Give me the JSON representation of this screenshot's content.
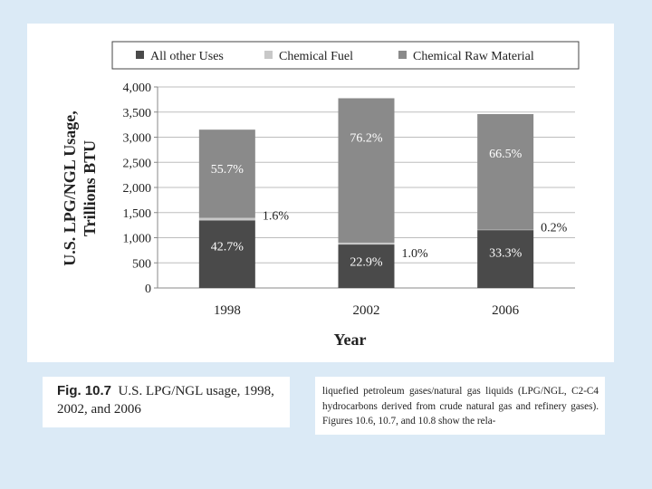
{
  "chart_data": {
    "type": "bar",
    "stacked": true,
    "categories": [
      "1998",
      "2002",
      "2006"
    ],
    "totals": [
      3150,
      3775,
      3460
    ],
    "series": [
      {
        "name": "All other Uses",
        "values": [
          1345,
          864,
          1152
        ],
        "labels": [
          "42.7%",
          "22.9%",
          "33.3%"
        ],
        "color": "#4a4a4a"
      },
      {
        "name": "Chemical Fuel",
        "values": [
          50,
          38,
          7
        ],
        "labels": [
          "1.6%",
          "1.0%",
          "0.2%"
        ],
        "color": "#c8c8c8"
      },
      {
        "name": "Chemical Raw Material",
        "values": [
          1755,
          2873,
          2301
        ],
        "labels": [
          "55.7%",
          "76.2%",
          "66.5%"
        ],
        "color": "#8a8a8a"
      }
    ],
    "ylabel": "U.S. LPG/NGL Usage, Trillions BTU",
    "ylabel_lines": [
      "U.S. LPG/NGL Usage,",
      "Trillions BTU"
    ],
    "xlabel": "Year",
    "ylim": [
      0,
      4000
    ],
    "yticks": [
      "0",
      "500",
      "1,000",
      "1,500",
      "2,000",
      "2,500",
      "3,000",
      "3,500",
      "4,000"
    ],
    "grid": true,
    "legend_position": "top"
  },
  "caption": {
    "figure_label": "Fig. 10.7",
    "text": "U.S. LPG/NGL usage, 1998, 2002, and 2006"
  },
  "body_text": "liquefied petroleum gases/natural gas liquids (LPG/NGL, C2-C4 hydrocarbons derived from crude natural gas and refinery gases). Figures 10.6, 10.7, and 10.8 show the rela-"
}
